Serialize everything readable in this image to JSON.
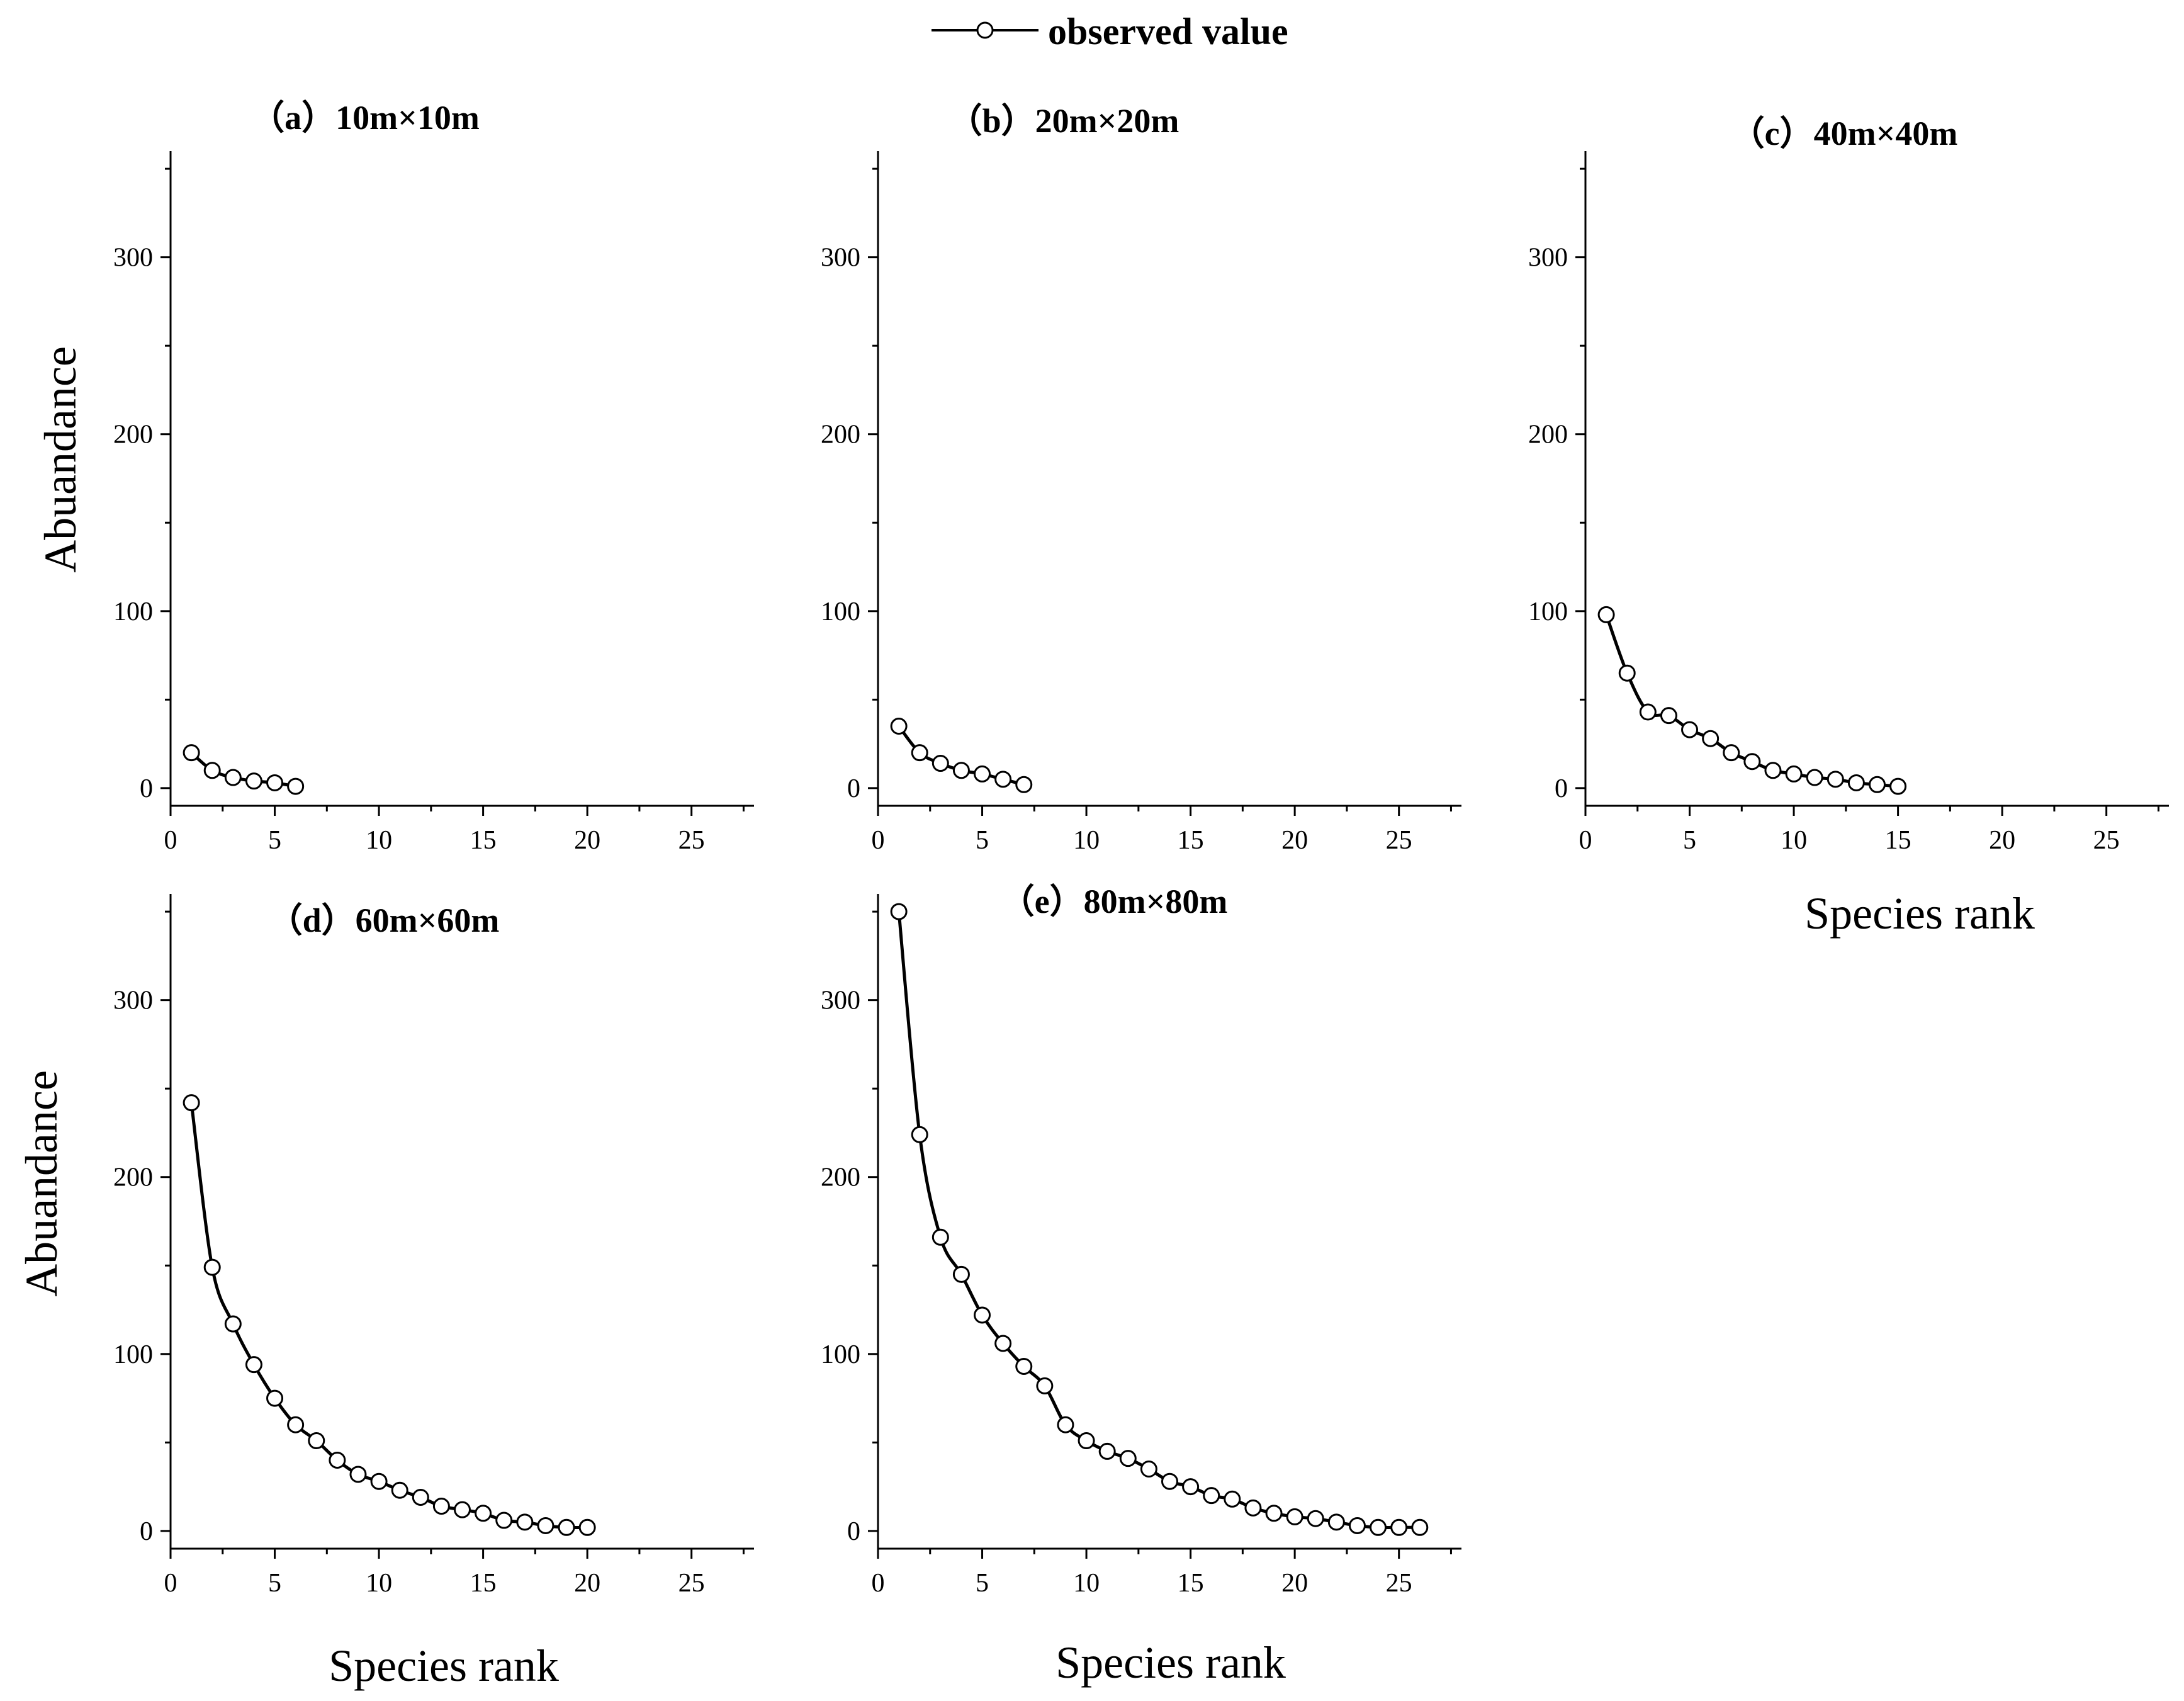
{
  "legend": {
    "label": "observed value"
  },
  "style": {
    "line_color": "#000000",
    "marker_fill": "#ffffff"
  },
  "chart_data": [
    {
      "id": "a",
      "type": "line",
      "title": "（a）10m×10m",
      "xlabel": "",
      "ylabel": "Abuandance",
      "xlim": [
        0,
        28
      ],
      "ylim": [
        -10,
        360
      ],
      "xticks": [
        0,
        5,
        10,
        15,
        20,
        25
      ],
      "yticks": [
        0,
        100,
        200,
        300
      ],
      "x": [
        1,
        2,
        3,
        4,
        5,
        6
      ],
      "y": [
        20,
        10,
        6,
        4,
        3,
        1
      ]
    },
    {
      "id": "b",
      "type": "line",
      "title": "（b）20m×20m",
      "xlabel": "",
      "ylabel": "",
      "xlim": [
        0,
        28
      ],
      "ylim": [
        -10,
        360
      ],
      "xticks": [
        0,
        5,
        10,
        15,
        20,
        25
      ],
      "yticks": [
        0,
        100,
        200,
        300
      ],
      "x": [
        1,
        2,
        3,
        4,
        5,
        6,
        7
      ],
      "y": [
        35,
        20,
        14,
        10,
        8,
        5,
        2
      ]
    },
    {
      "id": "c",
      "type": "line",
      "title": "（c）40m×40m",
      "xlabel": "Species rank",
      "ylabel": "",
      "xlim": [
        0,
        28
      ],
      "ylim": [
        -10,
        360
      ],
      "xticks": [
        0,
        5,
        10,
        15,
        20,
        25
      ],
      "yticks": [
        0,
        100,
        200,
        300
      ],
      "x": [
        1,
        2,
        3,
        4,
        5,
        6,
        7,
        8,
        9,
        10,
        11,
        12,
        13,
        14,
        15
      ],
      "y": [
        98,
        65,
        43,
        41,
        33,
        28,
        20,
        15,
        10,
        8,
        6,
        5,
        3,
        2,
        1
      ]
    },
    {
      "id": "d",
      "type": "line",
      "title": "（d）60m×60m",
      "xlabel": "Species rank",
      "ylabel": "Abuandance",
      "xlim": [
        0,
        28
      ],
      "ylim": [
        -10,
        360
      ],
      "xticks": [
        0,
        5,
        10,
        15,
        20,
        25
      ],
      "yticks": [
        0,
        100,
        200,
        300
      ],
      "x": [
        1,
        2,
        3,
        4,
        5,
        6,
        7,
        8,
        9,
        10,
        11,
        12,
        13,
        14,
        15,
        16,
        17,
        18,
        19,
        20
      ],
      "y": [
        242,
        149,
        117,
        94,
        75,
        60,
        51,
        40,
        32,
        28,
        23,
        19,
        14,
        12,
        10,
        6,
        5,
        3,
        2,
        2
      ]
    },
    {
      "id": "e",
      "type": "line",
      "title": "（e）80m×80m",
      "xlabel": "Species rank",
      "ylabel": "",
      "xlim": [
        0,
        28
      ],
      "ylim": [
        -10,
        360
      ],
      "xticks": [
        0,
        5,
        10,
        15,
        20,
        25
      ],
      "yticks": [
        0,
        100,
        200,
        300
      ],
      "x": [
        1,
        2,
        3,
        4,
        5,
        6,
        7,
        8,
        9,
        10,
        11,
        12,
        13,
        14,
        15,
        16,
        17,
        18,
        19,
        20,
        21,
        22,
        23,
        24,
        25,
        26
      ],
      "y": [
        350,
        224,
        166,
        145,
        122,
        106,
        93,
        82,
        60,
        51,
        45,
        41,
        35,
        28,
        25,
        20,
        18,
        13,
        10,
        8,
        7,
        5,
        3,
        2,
        2,
        2
      ]
    }
  ]
}
